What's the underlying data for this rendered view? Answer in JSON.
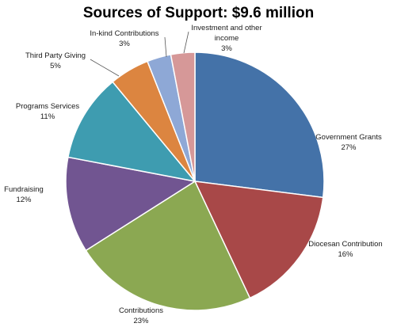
{
  "chart_data": {
    "type": "pie",
    "title": "Sources of Support: $9.6 million",
    "slices": [
      {
        "label": "Government Grants",
        "value_label": "27%",
        "value": 27,
        "color": "#4472A8"
      },
      {
        "label": "Diocesan Contribution",
        "value_label": "16%",
        "value": 16,
        "color": "#A84848"
      },
      {
        "label": "Contributions",
        "value_label": "23%",
        "value": 23,
        "color": "#8BA852"
      },
      {
        "label": "Fundraising",
        "value_label": "12%",
        "value": 12,
        "color": "#715591"
      },
      {
        "label": "Programs Services",
        "value_label": "11%",
        "value": 11,
        "color": "#3E9CB0"
      },
      {
        "label": "Third Party Giving",
        "value_label": "5%",
        "value": 5,
        "color": "#DC8540"
      },
      {
        "label": "In-kind Contributions",
        "value_label": "3%",
        "value": 3,
        "color": "#8EA8D6"
      },
      {
        "label": "Investment and other income",
        "value_label": "3%",
        "value": 3,
        "color": "#D69898"
      }
    ]
  }
}
